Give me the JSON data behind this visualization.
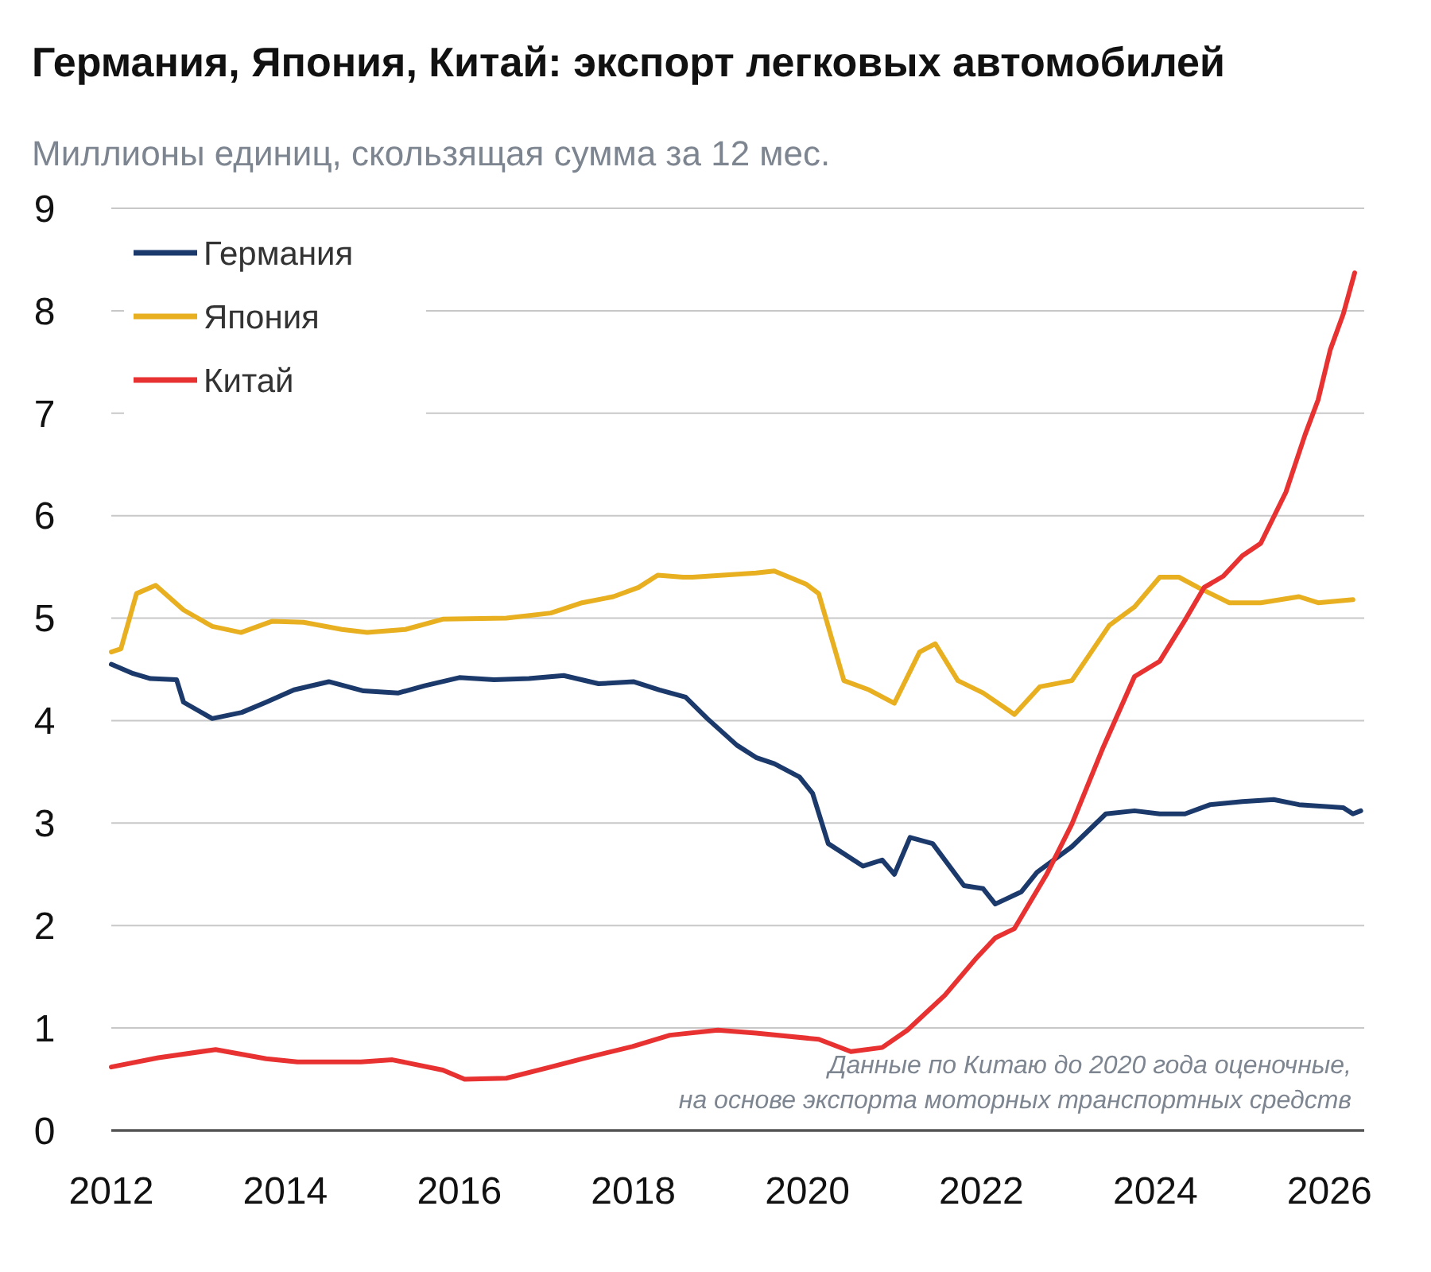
{
  "chart_data": {
    "type": "line",
    "title": "Германия, Япония, Китай: экспорт легковых автомобилей",
    "subtitle": "Миллионы единиц, скользящая сумма за 12 мес.",
    "xlim": [
      2012,
      2026.4
    ],
    "xticks": [
      2012,
      2014,
      2016,
      2018,
      2020,
      2022,
      2024,
      2026
    ],
    "ylim": [
      0,
      9
    ],
    "yticks": [
      0,
      1,
      2,
      3,
      4,
      5,
      6,
      7,
      8,
      9
    ],
    "grid": "y",
    "legend": "top left",
    "marker": "none",
    "line_style": "solid",
    "annotations": [
      "Данные по Китаю до 2020 года оценочные,\nна основе экспорта моторных транспортных средств"
    ],
    "series": [
      {
        "name": "Германия",
        "color": "#1b3a6b",
        "x": [
          2012.0,
          2012.25,
          2012.45,
          2012.75,
          2012.83,
          2013.16,
          2013.5,
          2013.78,
          2014.1,
          2014.5,
          2014.9,
          2015.3,
          2015.6,
          2016.0,
          2016.4,
          2016.8,
          2017.2,
          2017.6,
          2018.0,
          2018.3,
          2018.6,
          2018.85,
          2019.19,
          2019.41,
          2019.62,
          2019.91,
          2020.06,
          2020.24,
          2020.64,
          2020.86,
          2021.0,
          2021.18,
          2021.44,
          2021.8,
          2022.02,
          2022.16,
          2022.46,
          2022.64,
          2023.04,
          2023.43,
          2023.76,
          2024.05,
          2024.34,
          2024.63,
          2025.0,
          2025.36,
          2025.65,
          2026.16,
          2026.27,
          2026.36
        ],
        "values": [
          4.55,
          4.46,
          4.41,
          4.4,
          4.18,
          4.02,
          4.08,
          4.18,
          4.3,
          4.38,
          4.29,
          4.27,
          4.34,
          4.42,
          4.4,
          4.41,
          4.44,
          4.36,
          4.38,
          4.3,
          4.23,
          4.02,
          3.76,
          3.64,
          3.58,
          3.45,
          3.29,
          2.8,
          2.58,
          2.64,
          2.5,
          2.86,
          2.8,
          2.39,
          2.36,
          2.21,
          2.33,
          2.52,
          2.77,
          3.09,
          3.12,
          3.09,
          3.09,
          3.18,
          3.21,
          3.23,
          3.18,
          3.15,
          3.09,
          3.12
        ]
      },
      {
        "name": "Япония",
        "color": "#e8b020",
        "x": [
          2012.0,
          2012.11,
          2012.29,
          2012.51,
          2012.83,
          2013.16,
          2013.49,
          2013.85,
          2014.21,
          2014.65,
          2014.94,
          2015.38,
          2015.81,
          2016.54,
          2017.05,
          2017.41,
          2017.77,
          2018.06,
          2018.28,
          2018.57,
          2018.68,
          2019.41,
          2019.62,
          2019.99,
          2020.13,
          2020.42,
          2020.71,
          2021.0,
          2021.29,
          2021.47,
          2021.73,
          2022.02,
          2022.38,
          2022.67,
          2023.04,
          2023.47,
          2023.76,
          2024.05,
          2024.27,
          2024.49,
          2024.85,
          2025.21,
          2025.65,
          2025.87,
          2026.27
        ],
        "values": [
          4.67,
          4.7,
          5.24,
          5.32,
          5.08,
          4.92,
          4.86,
          4.97,
          4.96,
          4.89,
          4.86,
          4.89,
          4.99,
          5.0,
          5.05,
          5.15,
          5.21,
          5.3,
          5.42,
          5.4,
          5.4,
          5.44,
          5.46,
          5.33,
          5.24,
          4.39,
          4.3,
          4.17,
          4.67,
          4.75,
          4.39,
          4.27,
          4.06,
          4.33,
          4.39,
          4.93,
          5.11,
          5.4,
          5.4,
          5.3,
          5.15,
          5.15,
          5.21,
          5.15,
          5.18
        ]
      },
      {
        "name": "Китай",
        "color": "#e83232",
        "x": [
          2012.0,
          2012.54,
          2013.2,
          2013.78,
          2014.14,
          2014.87,
          2015.23,
          2015.81,
          2016.06,
          2016.54,
          2017.05,
          2017.41,
          2017.99,
          2018.42,
          2018.97,
          2019.41,
          2020.13,
          2020.5,
          2020.86,
          2021.15,
          2021.58,
          2021.95,
          2022.16,
          2022.38,
          2022.75,
          2023.04,
          2023.4,
          2023.76,
          2024.05,
          2024.34,
          2024.56,
          2024.78,
          2025.0,
          2025.21,
          2025.5,
          2025.72,
          2025.87,
          2026.01,
          2026.16,
          2026.29
        ],
        "values": [
          0.62,
          0.71,
          0.79,
          0.7,
          0.67,
          0.67,
          0.69,
          0.59,
          0.5,
          0.51,
          0.62,
          0.7,
          0.82,
          0.93,
          0.98,
          0.95,
          0.89,
          0.77,
          0.81,
          0.98,
          1.32,
          1.69,
          1.88,
          1.97,
          2.5,
          2.99,
          3.74,
          4.43,
          4.58,
          4.98,
          5.3,
          5.41,
          5.61,
          5.73,
          6.23,
          6.79,
          7.13,
          7.62,
          7.97,
          8.37
        ]
      }
    ]
  }
}
